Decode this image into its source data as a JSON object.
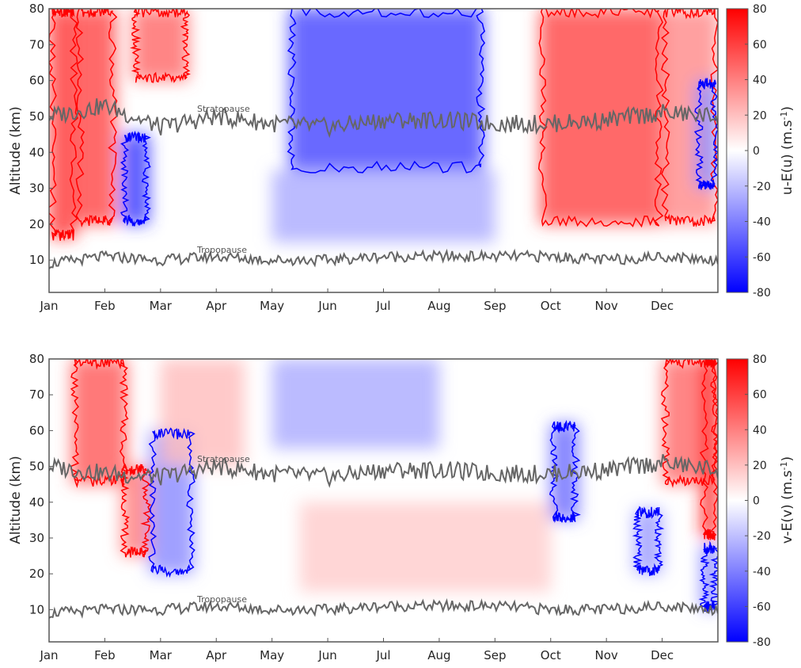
{
  "chart_data": [
    {
      "type": "heatmap",
      "panel": "top",
      "ylabel": "Altitude (km)",
      "colorbar_label_main": "u-E(u) (m.s",
      "colorbar_label_sup": "-1",
      "colorbar_label_end": ")",
      "months": [
        "Jan",
        "Feb",
        "Mar",
        "Apr",
        "May",
        "Jun",
        "Jul",
        "Aug",
        "Sep",
        "Oct",
        "Nov",
        "Dec"
      ],
      "yticks": [
        "10",
        "20",
        "30",
        "40",
        "50",
        "60",
        "70",
        "80"
      ],
      "ytick_values": [
        10,
        20,
        30,
        40,
        50,
        60,
        70,
        80
      ],
      "ylim": [
        1,
        80
      ],
      "cbar_ticks": [
        "80",
        "60",
        "40",
        "20",
        "0",
        "-20",
        "-40",
        "-60",
        "-80"
      ],
      "cbar_values": [
        80,
        60,
        40,
        20,
        0,
        -20,
        -40,
        -60,
        -80
      ],
      "clim": [
        -80,
        80
      ],
      "annotations": {
        "stratopause": "Stratopause",
        "tropopause": "Tropopause"
      },
      "colors": {
        "positive": "#ff0000",
        "negative": "#0000ff",
        "neutral": "#ffffff",
        "line": "#666666"
      },
      "anomaly_blobs": [
        {
          "t0": 0,
          "t1": 0.5,
          "z0": 16,
          "z1": 80,
          "v": 60
        },
        {
          "t0": 0.5,
          "t1": 1.2,
          "z0": 20,
          "z1": 80,
          "v": 55
        },
        {
          "t0": 1.3,
          "t1": 1.8,
          "z0": 20,
          "z1": 45,
          "v": -60
        },
        {
          "t0": 1.5,
          "t1": 2.5,
          "z0": 60,
          "z1": 80,
          "v": 45
        },
        {
          "t0": 4.3,
          "t1": 7.8,
          "z0": 35,
          "z1": 80,
          "v": -55
        },
        {
          "t0": 4.0,
          "t1": 8.0,
          "z0": 15,
          "z1": 35,
          "v": -25
        },
        {
          "t0": 8.8,
          "t1": 11.0,
          "z0": 20,
          "z1": 80,
          "v": 55
        },
        {
          "t0": 11.0,
          "t1": 12,
          "z0": 20,
          "z1": 80,
          "v": 35
        },
        {
          "t0": 11.6,
          "t1": 12,
          "z0": 30,
          "z1": 60,
          "v": -35
        }
      ],
      "stratopause_km": [
        50,
        53,
        47,
        50,
        48,
        47,
        49,
        49,
        48,
        48,
        49,
        51,
        50
      ],
      "tropopause_km": [
        9,
        11,
        10,
        11,
        10,
        10,
        11,
        11,
        11,
        11,
        10,
        11,
        10
      ]
    },
    {
      "type": "heatmap",
      "panel": "bottom",
      "ylabel": "Altitude (km)",
      "colorbar_label_main": "v-E(v) (m.s",
      "colorbar_label_sup": "-1",
      "colorbar_label_end": ")",
      "months": [
        "Jan",
        "Feb",
        "Mar",
        "Apr",
        "May",
        "Jun",
        "Jul",
        "Aug",
        "Sep",
        "Oct",
        "Nov",
        "Dec"
      ],
      "yticks": [
        "10",
        "20",
        "30",
        "40",
        "50",
        "60",
        "70",
        "80"
      ],
      "ytick_values": [
        10,
        20,
        30,
        40,
        50,
        60,
        70,
        80
      ],
      "ylim": [
        1,
        80
      ],
      "cbar_ticks": [
        "80",
        "60",
        "40",
        "20",
        "0",
        "-20",
        "-40",
        "-60",
        "-80"
      ],
      "cbar_values": [
        80,
        60,
        40,
        20,
        0,
        -20,
        -40,
        -60,
        -80
      ],
      "clim": [
        -80,
        80
      ],
      "annotations": {
        "stratopause": "Stratopause",
        "tropopause": "Tropopause"
      },
      "colors": {
        "positive": "#ff0000",
        "negative": "#0000ff",
        "neutral": "#ffffff",
        "line": "#666666"
      },
      "anomaly_blobs": [
        {
          "t0": 0.4,
          "t1": 1.4,
          "z0": 45,
          "z1": 80,
          "v": 50
        },
        {
          "t0": 1.3,
          "t1": 1.8,
          "z0": 25,
          "z1": 50,
          "v": 40
        },
        {
          "t0": 1.8,
          "t1": 2.6,
          "z0": 20,
          "z1": 60,
          "v": -35
        },
        {
          "t0": 2.0,
          "t1": 3.5,
          "z0": 50,
          "z1": 80,
          "v": 20
        },
        {
          "t0": 4.0,
          "t1": 7.0,
          "z0": 55,
          "z1": 80,
          "v": -25
        },
        {
          "t0": 4.5,
          "t1": 9.0,
          "z0": 15,
          "z1": 40,
          "v": 15
        },
        {
          "t0": 9.0,
          "t1": 9.5,
          "z0": 35,
          "z1": 62,
          "v": -45
        },
        {
          "t0": 10.5,
          "t1": 11.0,
          "z0": 20,
          "z1": 38,
          "v": -30
        },
        {
          "t0": 11.0,
          "t1": 12,
          "z0": 45,
          "z1": 80,
          "v": 45
        },
        {
          "t0": 11.7,
          "t1": 12,
          "z0": 30,
          "z1": 80,
          "v": 70
        },
        {
          "t0": 11.7,
          "t1": 12,
          "z0": 10,
          "z1": 28,
          "v": -40
        }
      ],
      "stratopause_km": [
        50,
        48,
        47,
        50,
        48,
        47,
        49,
        49,
        48,
        48,
        49,
        51,
        49
      ],
      "tropopause_km": [
        9,
        10,
        10,
        11,
        10,
        10,
        11,
        11,
        11,
        10,
        10,
        11,
        10
      ]
    }
  ]
}
